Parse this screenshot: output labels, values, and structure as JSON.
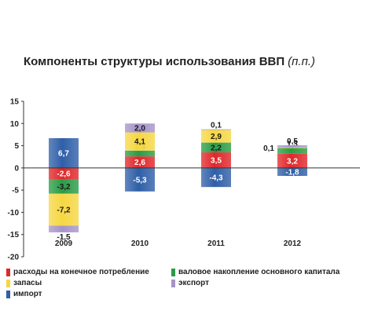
{
  "chart_data": {
    "type": "bar",
    "stacked": true,
    "title": "Компоненты структуры использования ВВП",
    "unit": "(п.п.)",
    "categories": [
      "2009",
      "2010",
      "2011",
      "2012"
    ],
    "ylim": [
      -20,
      15
    ],
    "yticks": [
      "15",
      "10",
      "5",
      "0",
      "-5",
      "-10",
      "-15",
      "-20"
    ],
    "series": [
      {
        "name": "расходы на конечное потребление",
        "color": "#e0272a",
        "values": [
          -2.6,
          2.6,
          3.5,
          3.2
        ],
        "labels": [
          "-2,6",
          "2,6",
          "3,5",
          "3,2"
        ]
      },
      {
        "name": "валовое накопление основного капитала",
        "color": "#2a9c46",
        "values": [
          -3.2,
          1.3,
          2.2,
          1.3
        ],
        "labels": [
          "-3,2",
          "1,3",
          "2,2",
          "1,3"
        ]
      },
      {
        "name": "запасы",
        "color": "#f6d743",
        "values": [
          -7.2,
          4.1,
          2.9,
          0.1
        ],
        "labels": [
          "-7,2",
          "4,1",
          "2,9",
          "0,1"
        ]
      },
      {
        "name": "экспорт",
        "color": "#a694c9",
        "values": [
          -1.5,
          2.0,
          0.1,
          0.5
        ],
        "labels": [
          "-1,5",
          "2,0",
          "0,1",
          "0,5"
        ]
      },
      {
        "name": "импорт",
        "color": "#2f5fa8",
        "values": [
          6.7,
          -5.3,
          -4.3,
          -1.8
        ],
        "labels": [
          "6,7",
          "-5,3",
          "-4,3",
          "-1,8"
        ]
      }
    ]
  }
}
